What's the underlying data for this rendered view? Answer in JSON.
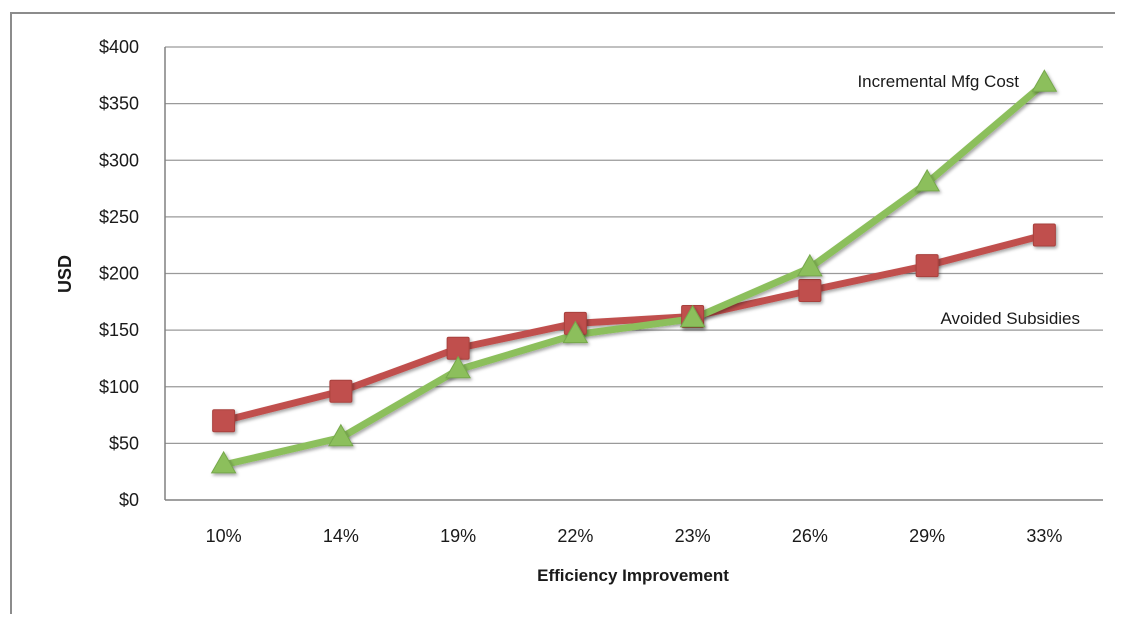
{
  "chart_data": {
    "type": "line",
    "categories": [
      "10%",
      "14%",
      "19%",
      "22%",
      "23%",
      "26%",
      "29%",
      "33%"
    ],
    "xlabel": "Efficiency Improvement",
    "ylabel": "USD",
    "ylim": [
      0,
      400
    ],
    "y_ticks": [
      "$0",
      "$50",
      "$100",
      "$150",
      "$200",
      "$250",
      "$300",
      "$350",
      "$400"
    ],
    "y_tick_values": [
      0,
      50,
      100,
      150,
      200,
      250,
      300,
      350,
      400
    ],
    "grid": true,
    "series": [
      {
        "name": "Avoided Subsidies",
        "values": [
          70,
          96,
          134,
          156,
          162,
          185,
          207,
          234
        ],
        "color": "#c0504d",
        "marker": "square"
      },
      {
        "name": "Incremental Mfg Cost",
        "values": [
          31,
          55,
          115,
          146,
          160,
          205,
          280,
          368
        ],
        "color": "#8cbf5c",
        "marker": "triangle"
      }
    ],
    "annotations": [
      {
        "text": "Incremental Mfg Cost",
        "series": "Incremental Mfg Cost"
      },
      {
        "text": "Avoided Subsidies",
        "series": "Avoided Subsidies"
      }
    ]
  }
}
